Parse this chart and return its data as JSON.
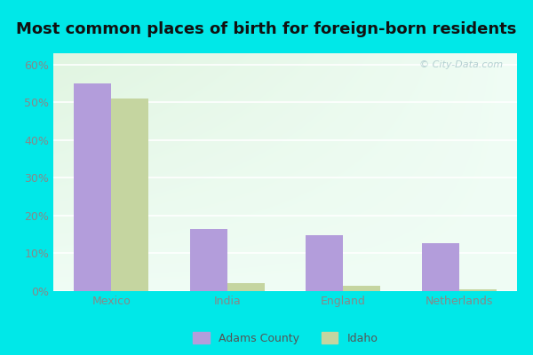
{
  "title": "Most common places of birth for foreign-born residents",
  "categories": [
    "Mexico",
    "India",
    "England",
    "Netherlands"
  ],
  "adams_county": [
    0.55,
    0.165,
    0.148,
    0.127
  ],
  "idaho": [
    0.51,
    0.022,
    0.014,
    0.004
  ],
  "adams_color": "#b39ddb",
  "idaho_color": "#c5d5a0",
  "fig_bg_color": "#00e8e8",
  "yticks": [
    0.0,
    0.1,
    0.2,
    0.3,
    0.4,
    0.5,
    0.6
  ],
  "ytick_labels": [
    "0%",
    "10%",
    "20%",
    "30%",
    "40%",
    "50%",
    "60%"
  ],
  "legend_labels": [
    "Adams County",
    "Idaho"
  ],
  "bar_width": 0.32,
  "title_fontsize": 13,
  "tick_fontsize": 9,
  "legend_fontsize": 9,
  "watermark_text": "© City-Data.com",
  "tick_color": "#888888",
  "grid_color": "#dddddd"
}
